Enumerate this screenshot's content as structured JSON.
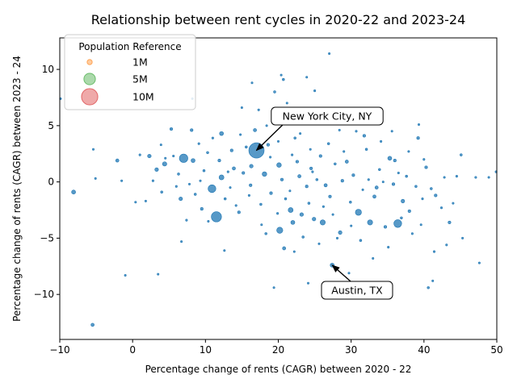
{
  "chart_data": {
    "type": "scatter",
    "title": "Relationship between rent cycles in 2020-22 and 2023-24",
    "xlabel": "Percentage change of rents (CAGR) between 2020 - 22",
    "ylabel": "Percentage change of rents (CAGR) between 2023 - 24",
    "xlim": [
      -10,
      50
    ],
    "ylim": [
      -14.0,
      12.8
    ],
    "xticks": [
      -10,
      0,
      10,
      20,
      30,
      40,
      50
    ],
    "yticks": [
      -10,
      -5,
      0,
      5,
      10
    ],
    "grid": false,
    "point_color": "#1f77b4",
    "legend": {
      "title": "Population Reference",
      "placement": "top-left",
      "entries": [
        {
          "label": "1M",
          "population_m": 1,
          "color": "#ff7f0e"
        },
        {
          "label": "5M",
          "population_m": 5,
          "color": "#2ca02c"
        },
        {
          "label": "10M",
          "population_m": 10,
          "color": "#d62728"
        }
      ]
    },
    "annotations": [
      {
        "text": "New York City, NY",
        "x": 17.0,
        "y": 2.8
      },
      {
        "text": "Austin, TX",
        "x": 27.4,
        "y": -7.4
      }
    ],
    "points": [
      {
        "x": 17.0,
        "y": 2.8,
        "population_m": 8.8
      },
      {
        "x": 11.5,
        "y": -3.1,
        "population_m": 3.9
      },
      {
        "x": 7.0,
        "y": 2.1,
        "population_m": 2.7
      },
      {
        "x": 10.9,
        "y": -0.6,
        "population_m": 2.3
      },
      {
        "x": 36.4,
        "y": -3.7,
        "population_m": 2.3
      },
      {
        "x": 20.2,
        "y": -4.3,
        "population_m": 1.4
      },
      {
        "x": 31.0,
        "y": -2.7,
        "population_m": 1.4
      },
      {
        "x": 32.6,
        "y": -3.6,
        "population_m": 1.0
      },
      {
        "x": 26.1,
        "y": -3.6,
        "population_m": 1.0
      },
      {
        "x": 21.7,
        "y": -2.5,
        "population_m": 0.9
      },
      {
        "x": 20.1,
        "y": 1.5,
        "population_m": 0.8
      },
      {
        "x": 12.2,
        "y": 0.4,
        "population_m": 0.9
      },
      {
        "x": 18.1,
        "y": 0.7,
        "population_m": 0.8
      },
      {
        "x": 4.4,
        "y": 1.6,
        "population_m": 0.7
      },
      {
        "x": 8.3,
        "y": 1.9,
        "population_m": 0.6
      },
      {
        "x": 12.2,
        "y": 4.3,
        "population_m": 0.6
      },
      {
        "x": -8.1,
        "y": -0.9,
        "population_m": 0.6
      },
      {
        "x": 22.0,
        "y": -3.6,
        "population_m": 0.6
      },
      {
        "x": 35.3,
        "y": 2.1,
        "population_m": 0.6
      },
      {
        "x": 27.4,
        "y": -7.4,
        "population_m": 0.6
      },
      {
        "x": 3.3,
        "y": 1.1,
        "population_m": 0.5
      },
      {
        "x": 2.3,
        "y": 2.3,
        "population_m": 0.5
      },
      {
        "x": 6.6,
        "y": -1.5,
        "population_m": 0.5
      },
      {
        "x": 37.1,
        "y": -1.7,
        "population_m": 0.5
      },
      {
        "x": 16.3,
        "y": 1.4,
        "population_m": 0.5
      },
      {
        "x": 23.2,
        "y": -2.9,
        "population_m": 0.5
      },
      {
        "x": 28.5,
        "y": -4.5,
        "population_m": 0.5
      },
      {
        "x": 24.9,
        "y": -3.3,
        "population_m": 0.5
      },
      {
        "x": 33.2,
        "y": -1.3,
        "population_m": 0.4
      },
      {
        "x": 22.9,
        "y": 0.5,
        "population_m": 0.4
      },
      {
        "x": -2.1,
        "y": 1.9,
        "population_m": 0.4
      },
      {
        "x": -5.5,
        "y": -12.7,
        "population_m": 0.4
      },
      {
        "x": 13.9,
        "y": 1.2,
        "population_m": 0.4
      },
      {
        "x": 20.8,
        "y": -5.9,
        "population_m": 0.4
      },
      {
        "x": 26.5,
        "y": -0.3,
        "population_m": 0.4
      },
      {
        "x": 16.8,
        "y": 4.6,
        "population_m": 0.4
      },
      {
        "x": 29.4,
        "y": 1.8,
        "population_m": 0.4
      },
      {
        "x": 33.5,
        "y": -0.5,
        "population_m": 0.4
      },
      {
        "x": 36.0,
        "y": 1.9,
        "population_m": 0.3
      },
      {
        "x": 24.5,
        "y": 1.2,
        "population_m": 0.3
      },
      {
        "x": 9.5,
        "y": -2.4,
        "population_m": 0.3
      },
      {
        "x": 15.2,
        "y": 0.8,
        "population_m": 0.3
      },
      {
        "x": 19.0,
        "y": -1.0,
        "population_m": 0.3
      },
      {
        "x": 25.8,
        "y": 2.3,
        "population_m": 0.3
      },
      {
        "x": 31.8,
        "y": 4.1,
        "population_m": 0.3
      },
      {
        "x": 39.2,
        "y": 3.9,
        "population_m": 0.3
      },
      {
        "x": 40.3,
        "y": 1.3,
        "population_m": 0.3
      },
      {
        "x": 14.6,
        "y": -2.7,
        "population_m": 0.3
      },
      {
        "x": 41.6,
        "y": -1.2,
        "population_m": 0.3
      },
      {
        "x": 21.4,
        "y": 5.6,
        "population_m": 0.3
      },
      {
        "x": 5.3,
        "y": 4.7,
        "population_m": 0.3
      },
      {
        "x": 8.1,
        "y": 4.6,
        "population_m": 0.3
      },
      {
        "x": 28.8,
        "y": 0.1,
        "population_m": 0.3
      },
      {
        "x": 11.9,
        "y": 1.9,
        "population_m": 0.3
      },
      {
        "x": 35.8,
        "y": -0.2,
        "population_m": 0.3
      },
      {
        "x": 22.6,
        "y": 1.8,
        "population_m": 0.3
      },
      {
        "x": 18.6,
        "y": 3.3,
        "population_m": 0.3
      },
      {
        "x": 30.3,
        "y": 0.6,
        "population_m": 0.3
      },
      {
        "x": 27.1,
        "y": -1.3,
        "population_m": 0.3
      },
      {
        "x": 23.9,
        "y": -0.4,
        "population_m": 0.3
      },
      {
        "x": 20.5,
        "y": 0.2,
        "population_m": 0.3
      },
      {
        "x": 16.2,
        "y": -0.3,
        "population_m": 0.3
      },
      {
        "x": 13.6,
        "y": 2.8,
        "population_m": 0.3
      },
      {
        "x": 38.0,
        "y": -2.6,
        "population_m": 0.3
      },
      {
        "x": 34.7,
        "y": -4.0,
        "population_m": 0.3
      },
      {
        "x": 43.5,
        "y": -3.6,
        "population_m": 0.3
      },
      {
        "x": 9.8,
        "y": 1.0,
        "population_m": 0.2
      },
      {
        "x": 26.9,
        "y": 3.4,
        "population_m": 0.2
      },
      {
        "x": 32.1,
        "y": 2.9,
        "population_m": 0.2
      },
      {
        "x": 37.6,
        "y": 0.5,
        "population_m": 0.2
      },
      {
        "x": 41.0,
        "y": -0.6,
        "population_m": 0.2
      },
      {
        "x": 19.5,
        "y": 8.0,
        "population_m": 0.2
      },
      {
        "x": 24.2,
        "y": -1.9,
        "population_m": 0.2
      },
      {
        "x": 21.0,
        "y": -1.5,
        "population_m": 0.2
      },
      {
        "x": 17.6,
        "y": -2.0,
        "population_m": 0.2
      },
      {
        "x": 10.3,
        "y": 2.6,
        "population_m": 0.2
      },
      {
        "x": 6.3,
        "y": 0.7,
        "population_m": 0.2
      },
      {
        "x": 25.3,
        "y": 0.2,
        "population_m": 0.2
      },
      {
        "x": 29.9,
        "y": -1.8,
        "population_m": 0.2
      },
      {
        "x": 33.9,
        "y": 1.1,
        "population_m": 0.2
      },
      {
        "x": 36.9,
        "y": -3.2,
        "population_m": 0.2
      },
      {
        "x": 38.9,
        "y": -0.4,
        "population_m": 0.2
      },
      {
        "x": 45.1,
        "y": 2.4,
        "population_m": 0.2
      },
      {
        "x": 40.6,
        "y": -9.4,
        "population_m": 0.2
      },
      {
        "x": 22.3,
        "y": 3.9,
        "population_m": 0.2
      },
      {
        "x": 18.3,
        "y": -4.6,
        "population_m": 0.2
      },
      {
        "x": 15.6,
        "y": 3.1,
        "population_m": 0.2
      },
      {
        "x": 27.8,
        "y": 1.6,
        "population_m": 0.2
      },
      {
        "x": 23.4,
        "y": -4.9,
        "population_m": 0.2
      },
      {
        "x": 20.7,
        "y": 9.1,
        "population_m": 0.2
      },
      {
        "x": 31.3,
        "y": -5.2,
        "population_m": 0.2
      },
      {
        "x": 8.6,
        "y": -1.1,
        "population_m": 0.2
      },
      {
        "x": 12.7,
        "y": -1.5,
        "population_m": 0.2
      },
      {
        "x": 4.0,
        "y": -0.9,
        "population_m": 0.2
      },
      {
        "x": 1.0,
        "y": 2.4,
        "population_m": 0.15
      },
      {
        "x": 30.7,
        "y": 4.5,
        "population_m": 0.15
      },
      {
        "x": 34.1,
        "y": 3.6,
        "population_m": 0.15
      },
      {
        "x": 39.8,
        "y": -1.5,
        "population_m": 0.15
      },
      {
        "x": 42.4,
        "y": -2.3,
        "population_m": 0.15
      },
      {
        "x": 44.5,
        "y": 0.5,
        "population_m": 0.15
      },
      {
        "x": 47.1,
        "y": 0.4,
        "population_m": 0.15
      },
      {
        "x": 49.9,
        "y": 0.9,
        "population_m": 0.15
      },
      {
        "x": 35.1,
        "y": -5.8,
        "population_m": 0.15
      },
      {
        "x": 28.1,
        "y": -5.0,
        "population_m": 0.15
      },
      {
        "x": 25.0,
        "y": 8.1,
        "population_m": 0.15
      },
      {
        "x": 19.9,
        "y": -2.8,
        "population_m": 0.15
      },
      {
        "x": 17.3,
        "y": 6.4,
        "population_m": 0.15
      },
      {
        "x": 14.2,
        "y": -2.1,
        "population_m": 0.15
      },
      {
        "x": 11.0,
        "y": 3.9,
        "population_m": 0.15
      },
      {
        "x": 7.4,
        "y": -3.4,
        "population_m": 0.15
      },
      {
        "x": 5.6,
        "y": 2.3,
        "population_m": 0.15
      },
      {
        "x": 2.8,
        "y": 0.1,
        "population_m": 0.15
      },
      {
        "x": -9.9,
        "y": 7.4,
        "population_m": 0.15
      },
      {
        "x": 21.9,
        "y": 2.4,
        "population_m": 0.15
      },
      {
        "x": 24.7,
        "y": 0.9,
        "population_m": 0.15
      },
      {
        "x": 26.2,
        "y": -2.2,
        "population_m": 0.15
      },
      {
        "x": 29.0,
        "y": 2.7,
        "population_m": 0.15
      },
      {
        "x": 32.4,
        "y": 0.2,
        "population_m": 0.15
      },
      {
        "x": 36.5,
        "y": 0.8,
        "population_m": 0.15
      },
      {
        "x": 38.4,
        "y": -4.6,
        "population_m": 0.15
      },
      {
        "x": 40.0,
        "y": 2.0,
        "population_m": 0.15
      },
      {
        "x": 43.1,
        "y": -5.6,
        "population_m": 0.15
      },
      {
        "x": 41.4,
        "y": -6.2,
        "population_m": 0.15
      },
      {
        "x": 18.9,
        "y": 2.2,
        "population_m": 0.15
      },
      {
        "x": 16.0,
        "y": -1.2,
        "population_m": 0.15
      },
      {
        "x": 13.1,
        "y": 0.9,
        "population_m": 0.15
      },
      {
        "x": 9.1,
        "y": 3.4,
        "population_m": 0.15
      },
      {
        "x": 6.0,
        "y": -0.4,
        "population_m": 0.15
      },
      {
        "x": 0.4,
        "y": -1.8,
        "population_m": 0.1
      },
      {
        "x": -1.0,
        "y": -8.3,
        "population_m": 0.1
      },
      {
        "x": 3.5,
        "y": -8.2,
        "population_m": 0.1
      },
      {
        "x": 6.7,
        "y": -5.3,
        "population_m": 0.1
      },
      {
        "x": 8.2,
        "y": 7.4,
        "population_m": 0.1
      },
      {
        "x": 15.0,
        "y": 6.6,
        "population_m": 0.1
      },
      {
        "x": 16.4,
        "y": 8.8,
        "population_m": 0.1
      },
      {
        "x": 20.4,
        "y": 9.5,
        "population_m": 0.1
      },
      {
        "x": 23.9,
        "y": 9.3,
        "population_m": 0.1
      },
      {
        "x": 27.0,
        "y": 11.4,
        "population_m": 0.1
      },
      {
        "x": 25.0,
        "y": 6.5,
        "population_m": 0.1
      },
      {
        "x": 24.1,
        "y": -9.0,
        "population_m": 0.1
      },
      {
        "x": 39.3,
        "y": 5.1,
        "population_m": 0.1
      },
      {
        "x": 45.3,
        "y": -5.0,
        "population_m": 0.1
      },
      {
        "x": 47.6,
        "y": -7.2,
        "population_m": 0.1
      },
      {
        "x": 41.2,
        "y": -8.8,
        "population_m": 0.1
      },
      {
        "x": 33.0,
        "y": -6.8,
        "population_m": 0.1
      },
      {
        "x": 29.7,
        "y": -8.1,
        "population_m": 0.1
      },
      {
        "x": 19.4,
        "y": -9.4,
        "population_m": 0.1
      },
      {
        "x": -5.1,
        "y": 0.3,
        "population_m": 0.1
      },
      {
        "x": 4.5,
        "y": 2.1,
        "population_m": 0.1
      },
      {
        "x": 14.8,
        "y": 4.2,
        "population_m": 0.1
      },
      {
        "x": 21.2,
        "y": 7.0,
        "population_m": 0.1
      },
      {
        "x": 28.4,
        "y": 4.6,
        "population_m": 0.1
      },
      {
        "x": 35.6,
        "y": 4.5,
        "population_m": 0.1
      },
      {
        "x": 37.9,
        "y": 2.7,
        "population_m": 0.1
      },
      {
        "x": 42.8,
        "y": 0.4,
        "population_m": 0.1
      },
      {
        "x": 48.9,
        "y": 0.4,
        "population_m": 0.1
      },
      {
        "x": 30.0,
        "y": -3.9,
        "population_m": 0.1
      },
      {
        "x": 25.6,
        "y": -5.5,
        "population_m": 0.1
      },
      {
        "x": 22.2,
        "y": -6.2,
        "population_m": 0.1
      },
      {
        "x": 17.7,
        "y": -3.8,
        "population_m": 0.1
      },
      {
        "x": 12.6,
        "y": -6.1,
        "population_m": 0.1
      },
      {
        "x": 10.4,
        "y": -3.5,
        "population_m": 0.1
      },
      {
        "x": 7.8,
        "y": -0.2,
        "population_m": 0.1
      },
      {
        "x": 3.9,
        "y": 3.3,
        "population_m": 0.1
      },
      {
        "x": 1.8,
        "y": -1.7,
        "population_m": 0.1
      },
      {
        "x": -1.5,
        "y": 0.1,
        "population_m": 0.1
      },
      {
        "x": -5.4,
        "y": 2.9,
        "population_m": 0.1
      },
      {
        "x": 18.4,
        "y": 5.0,
        "population_m": 0.1
      },
      {
        "x": 23.0,
        "y": 4.3,
        "population_m": 0.1
      },
      {
        "x": 26.7,
        "y": 5.2,
        "population_m": 0.1
      },
      {
        "x": 31.6,
        "y": -0.7,
        "population_m": 0.1
      },
      {
        "x": 34.4,
        "y": 0.0,
        "population_m": 0.1
      },
      {
        "x": 39.6,
        "y": -3.8,
        "population_m": 0.1
      },
      {
        "x": 44.0,
        "y": -1.9,
        "population_m": 0.1
      },
      {
        "x": 20.0,
        "y": 3.6,
        "population_m": 0.1
      },
      {
        "x": 21.6,
        "y": -0.8,
        "population_m": 0.1
      },
      {
        "x": 24.4,
        "y": 2.9,
        "population_m": 0.1
      },
      {
        "x": 27.5,
        "y": -2.9,
        "population_m": 0.1
      },
      {
        "x": 13.4,
        "y": -0.5,
        "population_m": 0.1
      },
      {
        "x": 9.3,
        "y": 0.1,
        "population_m": 0.1
      }
    ]
  }
}
